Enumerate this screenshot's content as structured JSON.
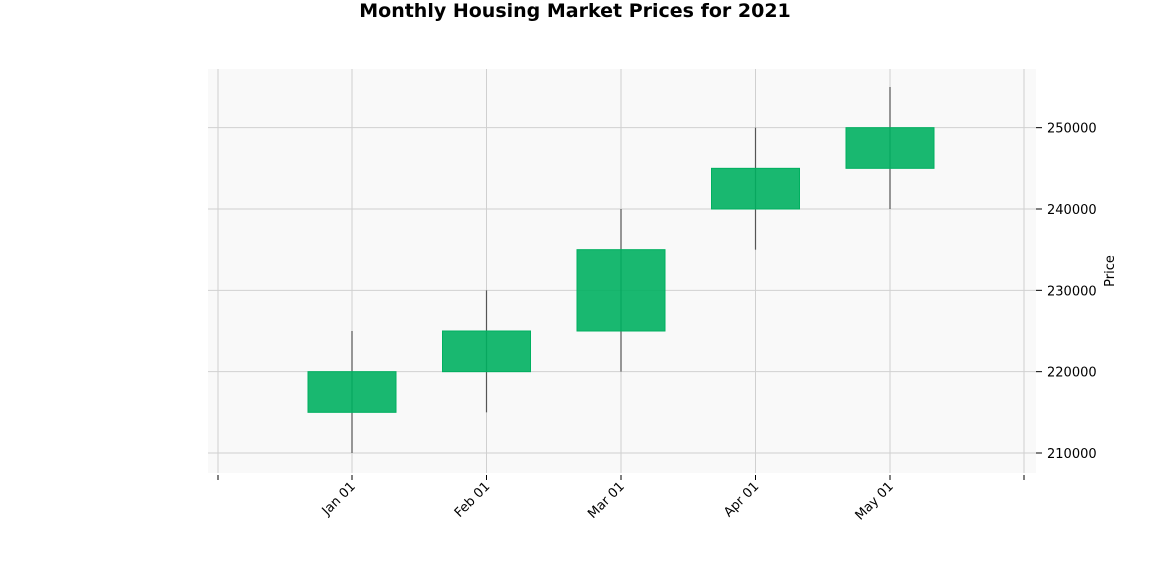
{
  "chart_data": {
    "type": "candlestick",
    "title": "Monthly Housing Market Prices for 2021",
    "xlabel": "",
    "ylabel": "Price",
    "categories": [
      "Jan 01",
      "Feb 01",
      "Mar 01",
      "Apr 01",
      "May 01"
    ],
    "open": [
      215000,
      220000,
      225000,
      240000,
      245000
    ],
    "high": [
      225000,
      230000,
      240000,
      250000,
      255000
    ],
    "low": [
      210000,
      215000,
      220000,
      235000,
      240000
    ],
    "close": [
      220000,
      225000,
      235000,
      245000,
      250000
    ],
    "yticks": [
      210000,
      220000,
      230000,
      240000,
      250000
    ],
    "ylim": [
      207500,
      257500
    ],
    "grid": true,
    "y_axis_side": "right",
    "colors": {
      "up_body": "#00b060",
      "down_body": "#ff3b30",
      "wick": "#555555",
      "plot_background": "#f9f9f9",
      "grid": "#d0d0d0"
    }
  }
}
